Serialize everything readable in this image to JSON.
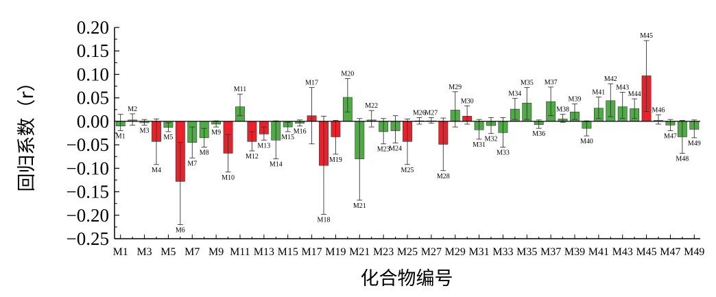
{
  "chart_data": {
    "type": "bar",
    "xlabel": "化合物编号",
    "ylabel": "回归系数（r）",
    "ylim": [
      -0.25,
      0.2
    ],
    "yticks": [
      "0.20",
      "0.15",
      "0.10",
      "0.05",
      "0.00",
      "−0.05",
      "−0.10",
      "−0.15",
      "−0.20",
      "−0.25"
    ],
    "ytick_values": [
      0.2,
      0.15,
      0.1,
      0.05,
      0.0,
      -0.05,
      -0.1,
      -0.15,
      -0.2,
      -0.25
    ],
    "xticks": [
      "M1",
      "M3",
      "M5",
      "M7",
      "M9",
      "M11",
      "M13",
      "M15",
      "M17",
      "M19",
      "M21",
      "M23",
      "M25",
      "M27",
      "M29",
      "M31",
      "M33",
      "M35",
      "M37",
      "M39",
      "M41",
      "M43",
      "M45",
      "M47",
      "M49"
    ],
    "categories": [
      "M1",
      "M2",
      "M3",
      "M4",
      "M5",
      "M6",
      "M7",
      "M8",
      "M9",
      "M10",
      "M11",
      "M12",
      "M13",
      "M14",
      "M15",
      "M16",
      "M17",
      "M18",
      "M19",
      "M20",
      "M21",
      "M22",
      "M23",
      "M24",
      "M25",
      "M26",
      "M27",
      "M28",
      "M29",
      "M30",
      "M31",
      "M32",
      "M33",
      "M34",
      "M35",
      "M36",
      "M37",
      "M38",
      "M39",
      "M40",
      "M41",
      "M42",
      "M43",
      "M44",
      "M45",
      "M46",
      "M47",
      "M48",
      "M49"
    ],
    "values": [
      -0.01,
      0.003,
      -0.003,
      -0.043,
      -0.013,
      -0.128,
      -0.045,
      -0.035,
      -0.006,
      -0.068,
      0.031,
      -0.043,
      -0.027,
      -0.04,
      -0.012,
      -0.004,
      0.012,
      -0.094,
      -0.033,
      0.051,
      -0.08,
      0.003,
      -0.022,
      -0.02,
      -0.043,
      0.001,
      0.001,
      -0.049,
      0.024,
      0.011,
      -0.018,
      -0.009,
      -0.024,
      0.026,
      0.039,
      -0.007,
      0.042,
      0.005,
      0.02,
      -0.015,
      0.028,
      0.044,
      0.031,
      0.027,
      0.097,
      0.002,
      -0.008,
      -0.033,
      -0.017
    ],
    "error_low": [
      -0.02,
      -0.008,
      -0.008,
      -0.092,
      -0.022,
      -0.22,
      -0.078,
      -0.055,
      -0.012,
      -0.108,
      0.012,
      -0.063,
      -0.04,
      -0.08,
      -0.022,
      -0.01,
      -0.048,
      -0.198,
      -0.07,
      0.02,
      -0.168,
      -0.012,
      -0.048,
      -0.046,
      -0.092,
      -0.006,
      -0.004,
      -0.105,
      -0.012,
      -0.006,
      -0.038,
      -0.026,
      -0.055,
      0.004,
      0.004,
      -0.015,
      0.012,
      -0.002,
      0.004,
      -0.031,
      0.006,
      0.01,
      0.006,
      0.006,
      0.021,
      -0.006,
      -0.02,
      -0.068,
      -0.035
    ],
    "error_high": [
      0.015,
      0.016,
      0.004,
      0.005,
      -0.003,
      -0.045,
      -0.012,
      -0.015,
      0.001,
      -0.028,
      0.058,
      -0.022,
      -0.012,
      0.001,
      -0.002,
      0.003,
      0.072,
      0.011,
      0.002,
      0.091,
      0.006,
      0.023,
      0.006,
      0.012,
      0.005,
      0.008,
      0.008,
      0.007,
      0.063,
      0.033,
      0.004,
      0.008,
      0.008,
      0.049,
      0.072,
      0.003,
      0.073,
      0.015,
      0.037,
      0.001,
      0.052,
      0.08,
      0.062,
      0.048,
      0.172,
      0.014,
      0.004,
      0.002,
      0.003
    ],
    "highlighted": [
      "M4",
      "M6",
      "M10",
      "M12",
      "M13",
      "M17",
      "M18",
      "M19",
      "M25",
      "M28",
      "M30",
      "M45"
    ],
    "colors": {
      "green": "#4fab44",
      "red": "#ea2128",
      "axis": "#000000"
    }
  }
}
